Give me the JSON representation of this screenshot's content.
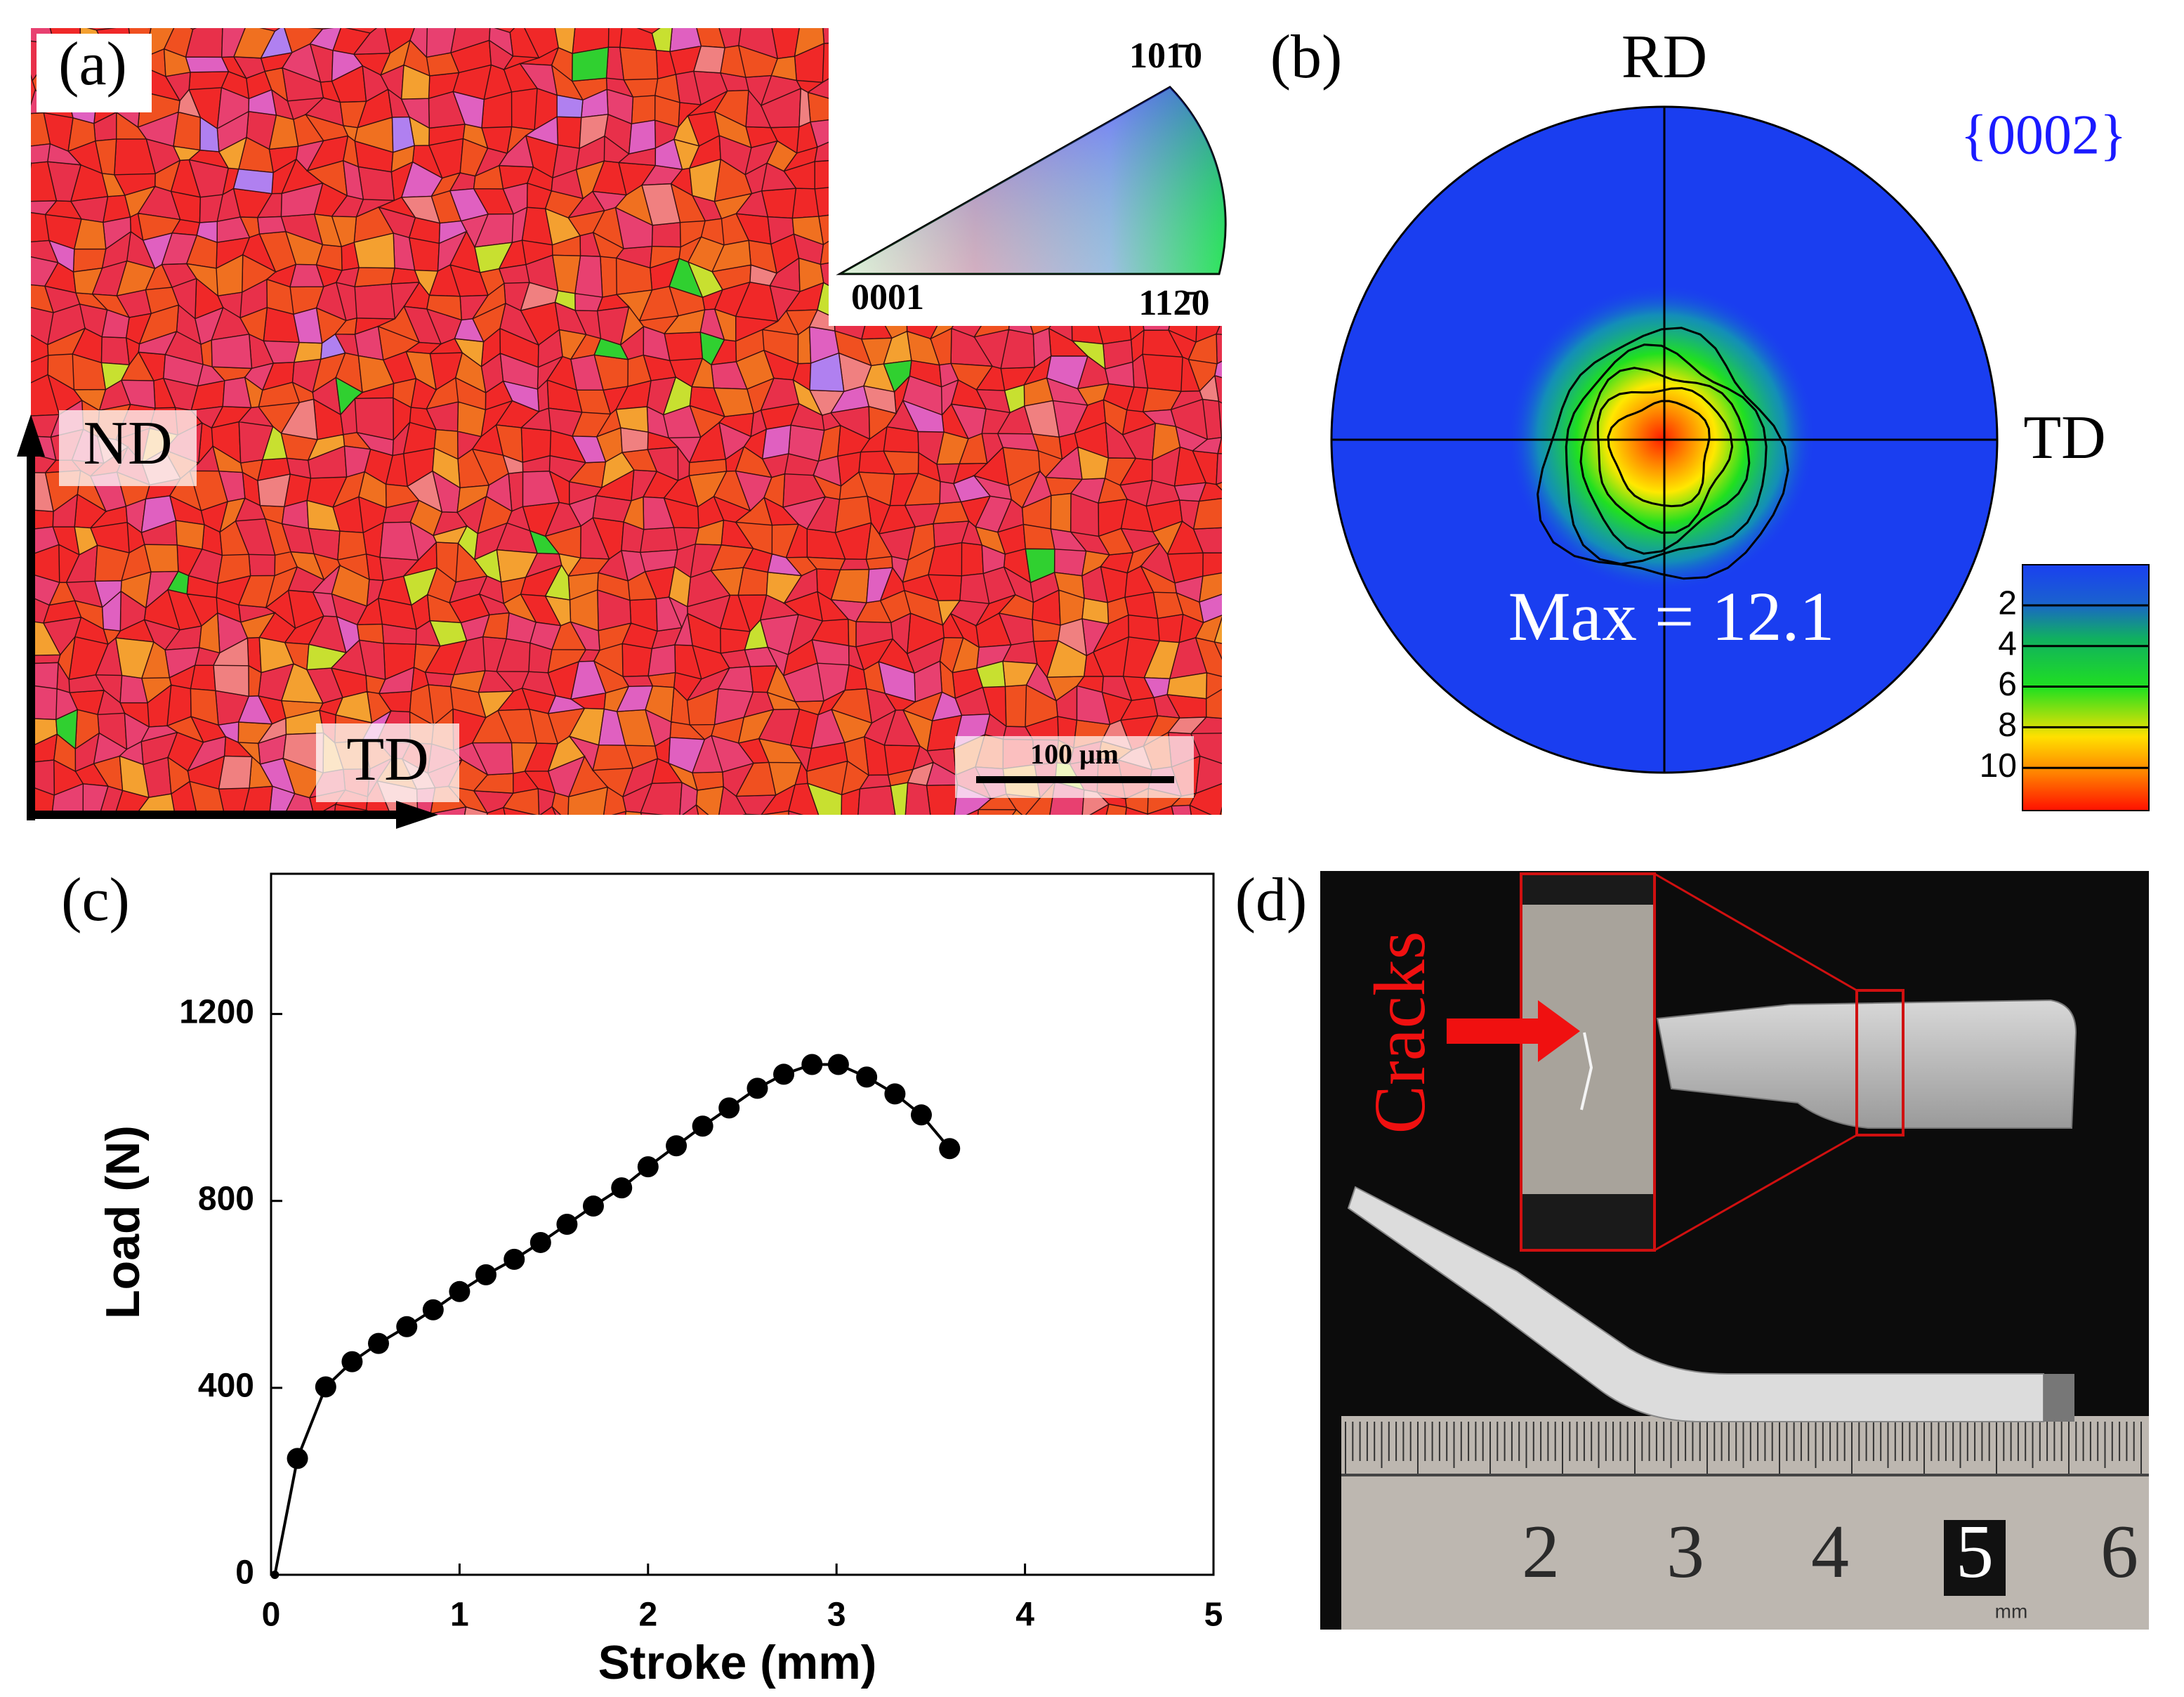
{
  "panel_a": {
    "label": "(a)",
    "direction_labels": [
      "ND",
      "TD"
    ],
    "scale_bar": "100 μm",
    "ipf_key": [
      "101̄0",
      "0001",
      "112̄0"
    ]
  },
  "panel_b": {
    "label": "(b)",
    "title": "{0002}",
    "direction_labels": [
      "RD",
      "TD"
    ],
    "max_text": "Max = 12.1",
    "colorbar": {
      "lim": [
        0,
        12.1
      ],
      "ticks": [
        2,
        4,
        6,
        8,
        10
      ]
    }
  },
  "panel_c": {
    "label": "(c)"
  },
  "chart_data": {
    "type": "line",
    "xlabel": "Stroke (mm)",
    "ylabel": "Load (N)",
    "xlim": [
      0,
      5
    ],
    "xticks": [
      0,
      1,
      2,
      3,
      4,
      5
    ],
    "ylim": [
      0,
      1500
    ],
    "yticks": [
      0,
      400,
      800,
      1200
    ],
    "color": "#000000",
    "marker": "circle",
    "x": [
      0.02,
      0.14,
      0.29,
      0.43,
      0.57,
      0.72,
      0.86,
      1.0,
      1.14,
      1.29,
      1.43,
      1.57,
      1.71,
      1.86,
      2.0,
      2.15,
      2.29,
      2.43,
      2.58,
      2.72,
      2.87,
      3.01,
      3.16,
      3.31,
      3.45,
      3.6
    ],
    "values": [
      0,
      249,
      402,
      456,
      495,
      531,
      567,
      606,
      642,
      675,
      711,
      750,
      789,
      828,
      873,
      918,
      960,
      999,
      1041,
      1071,
      1092,
      1092,
      1065,
      1029,
      984,
      912
    ]
  },
  "panel_d": {
    "label": "(d)",
    "annotation": "Cracks",
    "ruler_labels": [
      "2",
      "3",
      "4",
      "5",
      "6"
    ],
    "ruler_unit": "mm"
  }
}
